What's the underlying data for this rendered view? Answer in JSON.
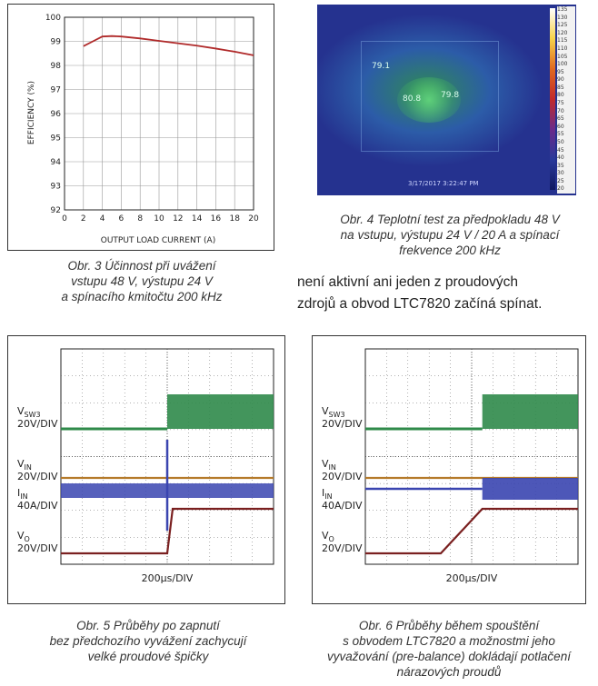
{
  "fig3": {
    "chart_data": {
      "type": "line",
      "xlabel": "OUTPUT LOAD CURRENT (A)",
      "ylabel": "EFFICIENCY (%)",
      "xlim": [
        0,
        20
      ],
      "ylim": [
        92,
        100
      ],
      "xticks": [
        "0",
        "2",
        "4",
        "6",
        "8",
        "10",
        "12",
        "14",
        "16",
        "18",
        "20"
      ],
      "yticks": [
        "100",
        "99",
        "98",
        "97",
        "96",
        "95",
        "94",
        "93",
        "92"
      ],
      "grid": true,
      "series": [
        {
          "color": "#b02a2a",
          "x": [
            2,
            3,
            4,
            5,
            6,
            8,
            10,
            12,
            14,
            16,
            18,
            20
          ],
          "y": [
            98.8,
            99.0,
            99.2,
            99.22,
            99.2,
            99.12,
            99.02,
            98.92,
            98.82,
            98.7,
            98.57,
            98.42
          ]
        }
      ]
    },
    "caption": [
      "Obr. 3  Účinnost při uvážení",
      "vstupu 48 V, výstupu 24 V",
      "a spínacího kmitočtu 200 kHz"
    ]
  },
  "fig4": {
    "timestamp": "3/17/2017 3:22:47 PM",
    "spot_labels": [
      "79.1",
      "80.8",
      "79.8"
    ],
    "scale_labels": [
      "135",
      "130",
      "125",
      "120",
      "115",
      "110",
      "105",
      "100",
      "95",
      "90",
      "85",
      "80",
      "75",
      "70",
      "65",
      "60",
      "55",
      "50",
      "45",
      "40",
      "35",
      "30",
      "25",
      "20"
    ],
    "caption": [
      "Obr. 4  Teplotní test za předpokladu 48 V",
      "na vstupu, výstupu 24 V / 20 A a spínací",
      "frekvence 200 kHz"
    ]
  },
  "body_text": [
    "není aktivní ani jeden z proudových",
    "zdrojů a obvod LTC7820 začíná spínat."
  ],
  "fig5": {
    "labels": {
      "vsw3": "V",
      "vsw3_sub": "SW3",
      "vin": "V",
      "vin_sub": "IN",
      "iin": "I",
      "iin_sub": "IN",
      "vo": "V",
      "vo_sub": "O",
      "div20": "20V/DIV",
      "div40": "40A/DIV",
      "time": "200µs/DIV"
    },
    "trace_colors": {
      "vsw3": "#2f8a4a",
      "vin": "#b57a2a",
      "iin": "#3a45b0",
      "vo": "#7a2020"
    },
    "caption": [
      "Obr. 5  Průběhy po zapnutí",
      "bez předchozího vyvážení zachycují",
      "velké proudové špičky"
    ]
  },
  "fig6": {
    "labels": {
      "vsw3": "V",
      "vsw3_sub": "SW3",
      "vin": "V",
      "vin_sub": "IN",
      "iin": "I",
      "iin_sub": "IN",
      "vo": "V",
      "vo_sub": "O",
      "div20": "20V/DIV",
      "div40": "40A/DIV",
      "time": "200µs/DIV"
    },
    "trace_colors": {
      "vsw3": "#2f8a4a",
      "vin": "#b57a2a",
      "iin": "#3a45b0",
      "vo": "#7a2020"
    },
    "caption": [
      "Obr. 6  Průběhy během spouštění",
      "s obvodem LTC7820 a možnostmi jeho",
      "vyvažování (pre-balance) dokládají potlačení",
      "nárazových proudů"
    ]
  }
}
